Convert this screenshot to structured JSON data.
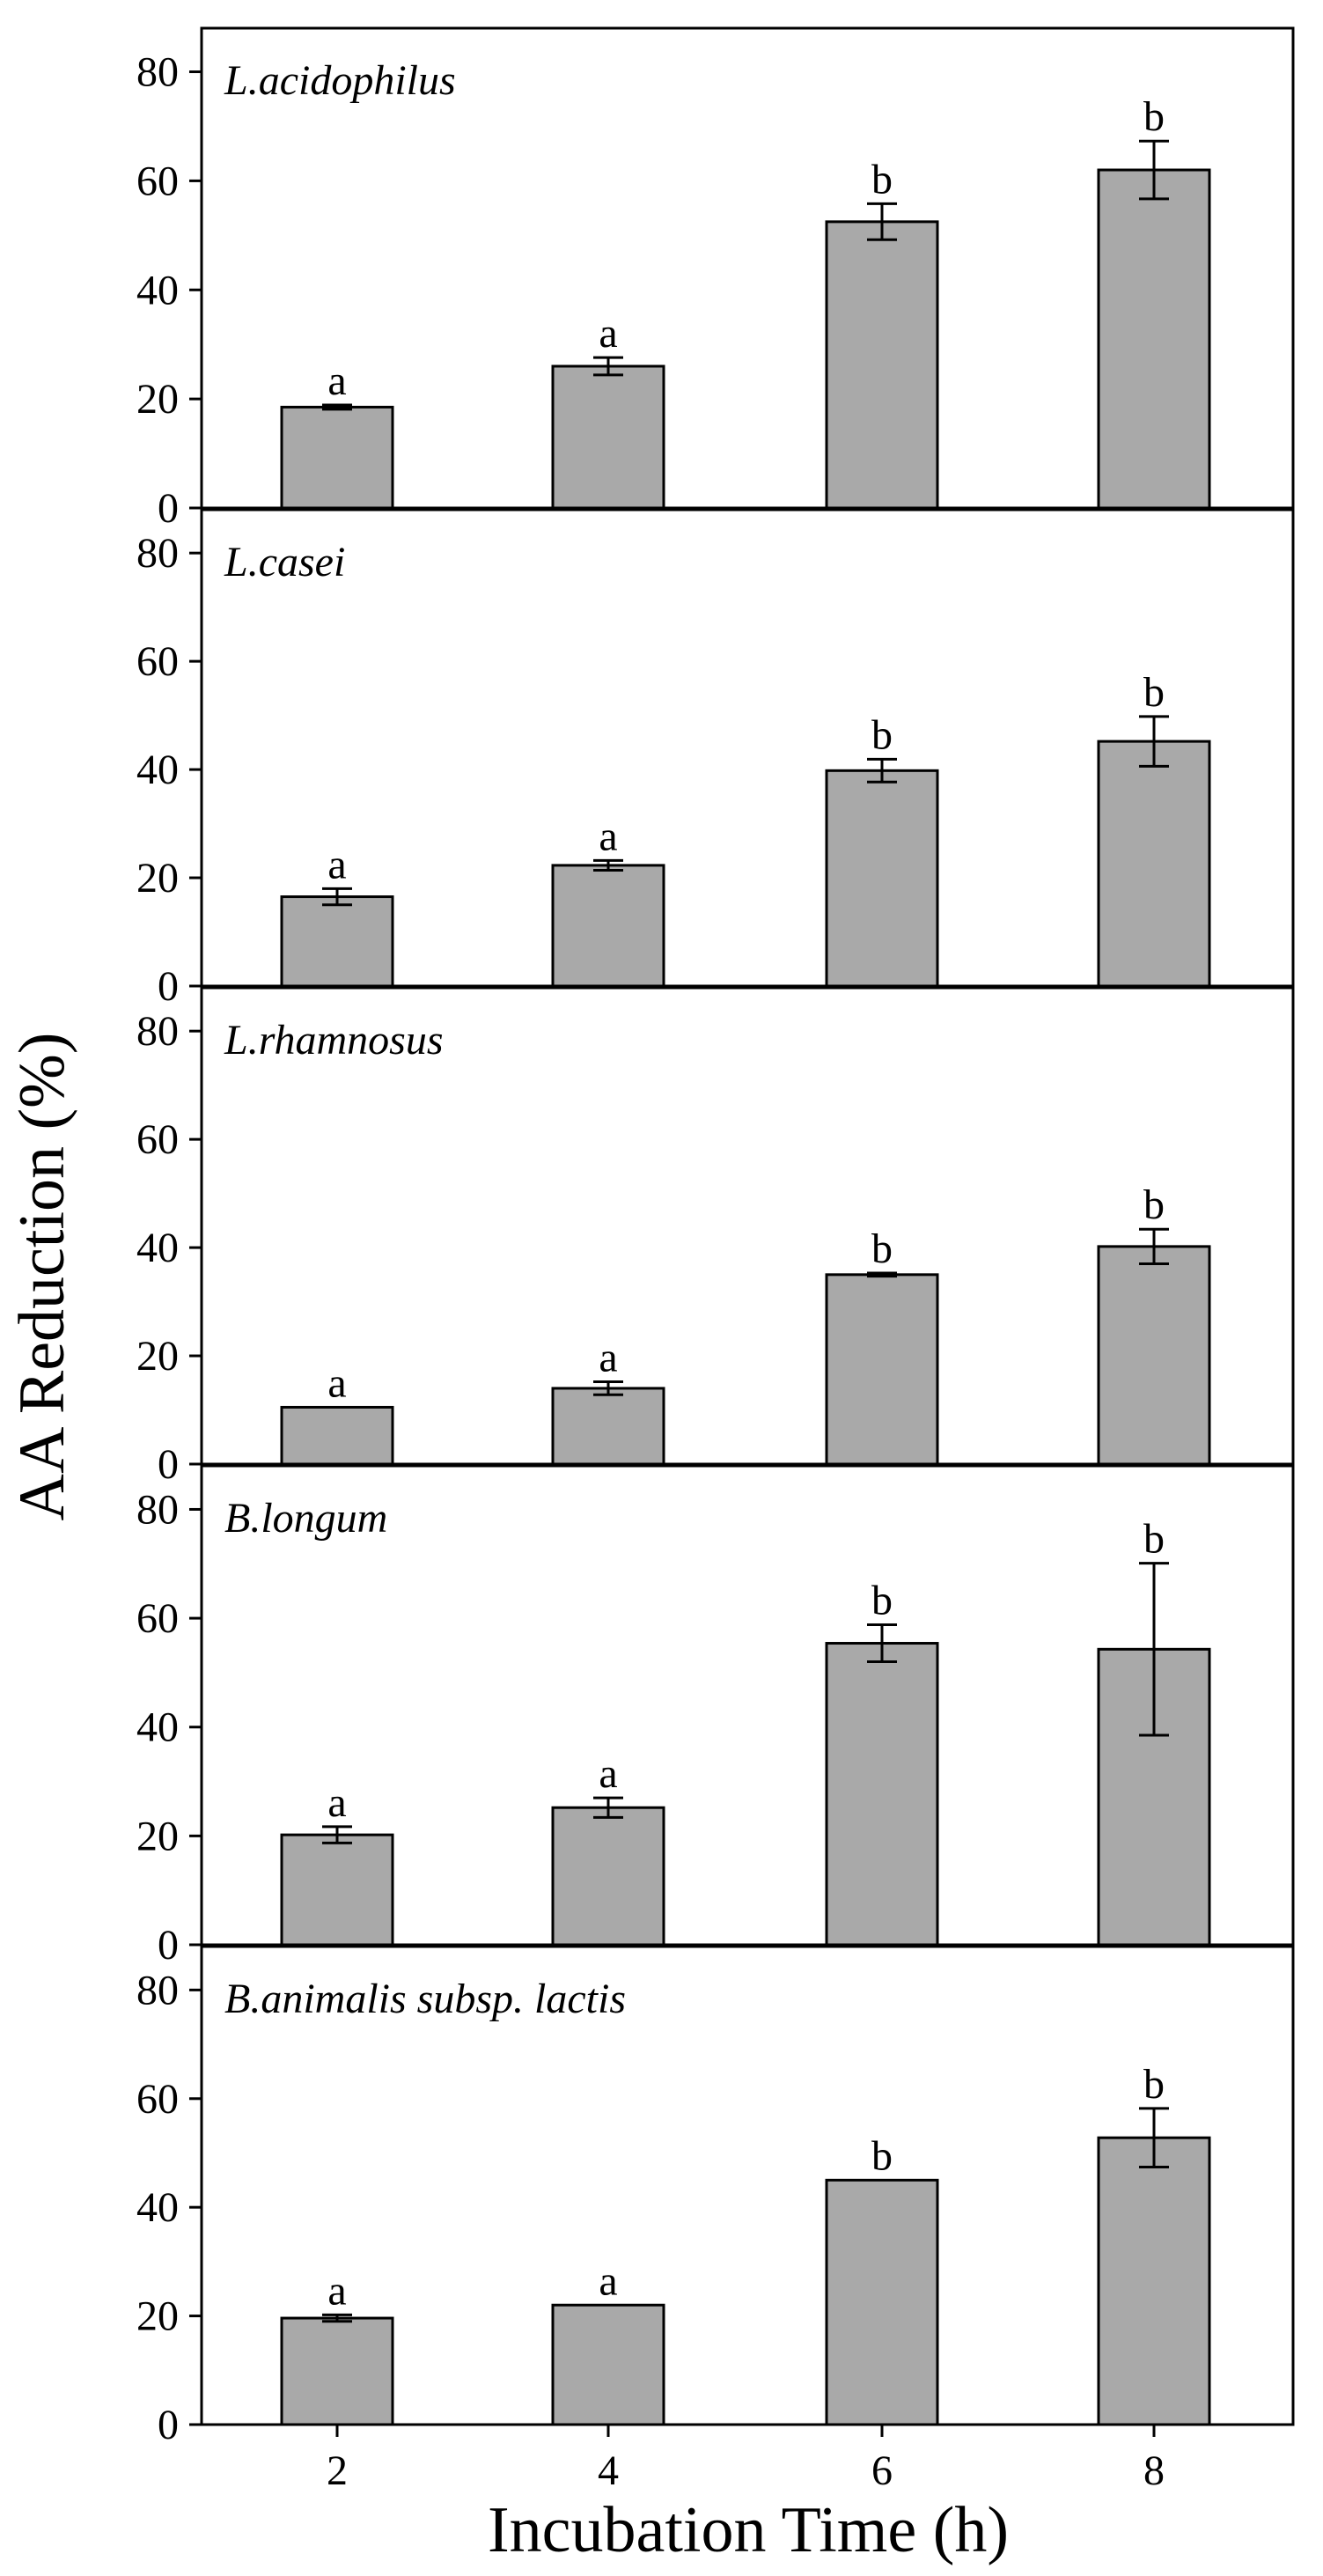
{
  "chart_data": {
    "type": "bar",
    "ylabel": "AA Reduction (%)",
    "xlabel": "Incubation Time (h)",
    "categories": [
      "2",
      "4",
      "6",
      "8"
    ],
    "ylim": [
      0,
      88
    ],
    "yticks": [
      "0",
      "20",
      "40",
      "60",
      "80"
    ],
    "bar_color": "#a9a9a9",
    "panels": [
      {
        "label": "L.acidophilus",
        "values": [
          18.5,
          26,
          52.5,
          62
        ],
        "errors": [
          0.4,
          1.6,
          3.3,
          5.3
        ],
        "letters": [
          "a",
          "a",
          "b",
          "b"
        ]
      },
      {
        "label": "L.casei",
        "values": [
          16.5,
          22.3,
          39.8,
          45.2
        ],
        "errors": [
          1.5,
          0.9,
          2.1,
          4.6
        ],
        "letters": [
          "a",
          "a",
          "b",
          "b"
        ]
      },
      {
        "label": "L.rhamnosus",
        "values": [
          10.5,
          14,
          35,
          40.2
        ],
        "errors": [
          0,
          1.2,
          0.3,
          3.2
        ],
        "letters": [
          "a",
          "a",
          "b",
          "b"
        ]
      },
      {
        "label": "B.longum",
        "values": [
          20.2,
          25.2,
          55.4,
          54.3
        ],
        "errors": [
          1.5,
          1.8,
          3.4,
          15.8
        ],
        "letters": [
          "a",
          "a",
          "b",
          "b"
        ]
      },
      {
        "label": "B.animalis subsp. lactis",
        "values": [
          19.6,
          22,
          45,
          52.8
        ],
        "errors": [
          0.6,
          0,
          0,
          5.4
        ],
        "letters": [
          "a",
          "a",
          "b",
          "b"
        ]
      }
    ]
  }
}
